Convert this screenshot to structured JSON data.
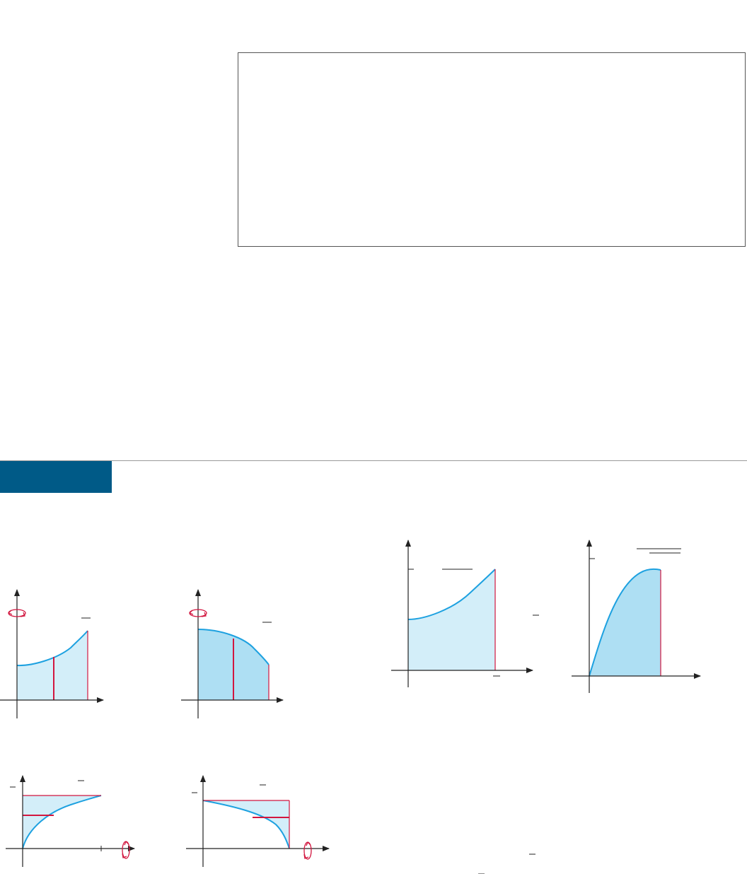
{
  "colors": {
    "curve": "#1da1e0",
    "fill_light": "#d3eef9",
    "fill_medium": "#aedff3",
    "strip": "#d2163f",
    "axis": "#222222",
    "box_border": "#555555",
    "tab": "#005a87",
    "rotation_arrow": "#d2163f"
  },
  "icons": {
    "rotation": "rotation-arrow-icon"
  },
  "note_box": {
    "text": ""
  },
  "section_tab": {
    "text": ""
  },
  "figures": [
    {
      "id": "fig-a",
      "type": "area-with-vertical-strip",
      "rotation_axis": "y",
      "shading": "light"
    },
    {
      "id": "fig-b",
      "type": "area-with-vertical-strip",
      "rotation_axis": "y",
      "shading": "medium"
    },
    {
      "id": "fig-c",
      "type": "area-under-increasing-curve",
      "shading": "light"
    },
    {
      "id": "fig-d",
      "type": "area-under-hump-curve",
      "shading": "medium"
    },
    {
      "id": "fig-e",
      "type": "area-with-horizontal-strip",
      "rotation_axis": "x",
      "shading": "light"
    },
    {
      "id": "fig-f",
      "type": "area-with-horizontal-strip",
      "rotation_axis": "x",
      "shading": "light"
    }
  ]
}
